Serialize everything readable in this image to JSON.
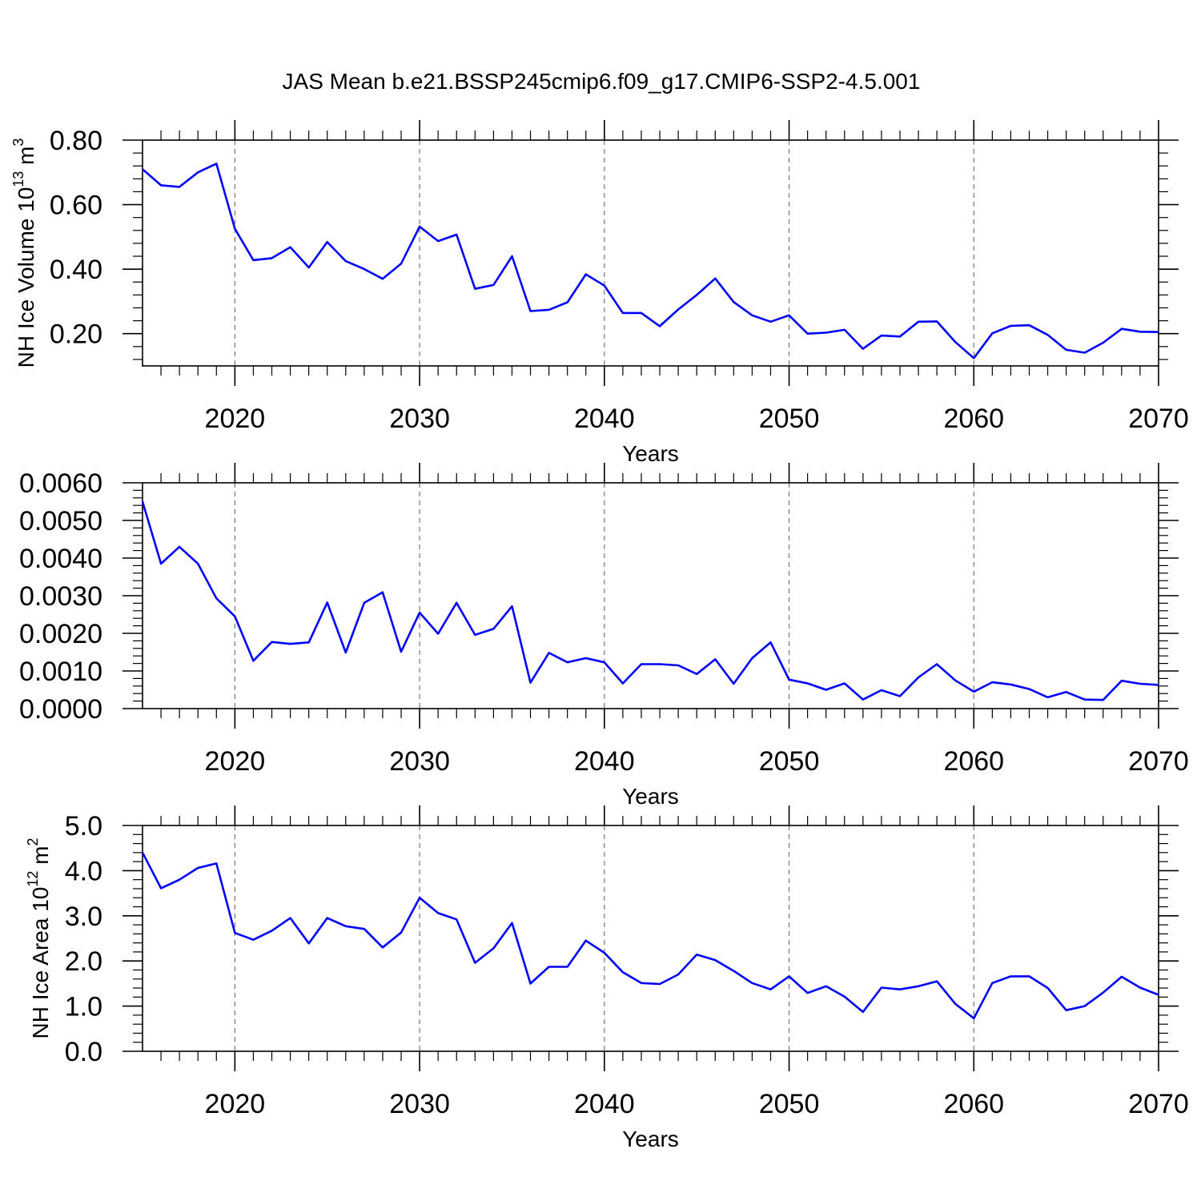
{
  "title": "JAS Mean b.e21.BSSP245cmip6.f09_g17.CMIP6-SSP2-4.5.001",
  "chart_data": [
    {
      "type": "line",
      "title": "JAS Mean b.e21.BSSP245cmip6.f09_g17.CMIP6-SSP2-4.5.001",
      "xlabel": "Years",
      "ylabel": {
        "base": "NH Ice Volume 10",
        "sup": "13",
        "unit": " m",
        "unit_sup": "3"
      },
      "xlim": [
        2015,
        2070
      ],
      "ylim": [
        0.1,
        0.8
      ],
      "xticks": [
        2020,
        2030,
        2040,
        2050,
        2060,
        2070
      ],
      "xtick_labels": [
        "2020",
        "2030",
        "2040",
        "2050",
        "2060",
        "2070"
      ],
      "yticks": [
        0.2,
        0.4,
        0.6,
        0.8
      ],
      "ytick_labels": [
        "0.20",
        "0.40",
        "0.60",
        "0.80"
      ],
      "grid": "dashed vertical at major x ticks",
      "color": "#0000ff",
      "x": [
        2015,
        2016,
        2017,
        2018,
        2019,
        2020,
        2021,
        2022,
        2023,
        2024,
        2025,
        2026,
        2027,
        2028,
        2029,
        2030,
        2031,
        2032,
        2033,
        2034,
        2035,
        2036,
        2037,
        2038,
        2039,
        2040,
        2041,
        2042,
        2043,
        2044,
        2045,
        2046,
        2047,
        2048,
        2049,
        2050,
        2051,
        2052,
        2053,
        2054,
        2055,
        2056,
        2057,
        2058,
        2059,
        2060,
        2061,
        2062,
        2063,
        2064,
        2065,
        2066,
        2067,
        2068,
        2069,
        2070
      ],
      "values": [
        0.71,
        0.66,
        0.655,
        0.7,
        0.727,
        0.525,
        0.428,
        0.434,
        0.468,
        0.405,
        0.484,
        0.425,
        0.4,
        0.37,
        0.417,
        0.532,
        0.487,
        0.507,
        0.339,
        0.351,
        0.44,
        0.27,
        0.274,
        0.297,
        0.384,
        0.349,
        0.264,
        0.264,
        0.223,
        0.275,
        0.32,
        0.371,
        0.298,
        0.257,
        0.237,
        0.257,
        0.2,
        0.203,
        0.212,
        0.153,
        0.194,
        0.191,
        0.237,
        0.238,
        0.174,
        0.124,
        0.201,
        0.224,
        0.226,
        0.196,
        0.15,
        0.141,
        0.172,
        0.215,
        0.206,
        0.205
      ]
    },
    {
      "type": "line",
      "xlabel": "Years",
      "ylabel": {
        "base": "",
        "sup": "",
        "unit": "",
        "unit_sup": ""
      },
      "xlim": [
        2015,
        2070
      ],
      "ylim": [
        0,
        0.006
      ],
      "xticks": [
        2020,
        2030,
        2040,
        2050,
        2060,
        2070
      ],
      "xtick_labels": [
        "2020",
        "2030",
        "2040",
        "2050",
        "2060",
        "2070"
      ],
      "yticks": [
        0,
        0.001,
        0.002,
        0.003,
        0.004,
        0.005,
        0.006
      ],
      "ytick_labels": [
        "0.0000",
        "0.0010",
        "0.0020",
        "0.0030",
        "0.0040",
        "0.0050",
        "0.0060"
      ],
      "grid": "dashed vertical at major x ticks",
      "color": "#0000ff",
      "x": [
        2015,
        2016,
        2017,
        2018,
        2019,
        2020,
        2021,
        2022,
        2023,
        2024,
        2025,
        2026,
        2027,
        2028,
        2029,
        2030,
        2031,
        2032,
        2033,
        2034,
        2035,
        2036,
        2037,
        2038,
        2039,
        2040,
        2041,
        2042,
        2043,
        2044,
        2045,
        2046,
        2047,
        2048,
        2049,
        2050,
        2051,
        2052,
        2053,
        2054,
        2055,
        2056,
        2057,
        2058,
        2059,
        2060,
        2061,
        2062,
        2063,
        2064,
        2065,
        2066,
        2067,
        2068,
        2069,
        2070
      ],
      "values": [
        0.0055,
        0.00385,
        0.0043,
        0.00385,
        0.00293,
        0.00245,
        0.00127,
        0.00177,
        0.00172,
        0.00176,
        0.00282,
        0.00149,
        0.00281,
        0.00309,
        0.00151,
        0.00255,
        0.00199,
        0.00281,
        0.00196,
        0.00212,
        0.00272,
        0.00069,
        0.00148,
        0.00123,
        0.00134,
        0.00123,
        0.00067,
        0.00118,
        0.00118,
        0.00115,
        0.00092,
        0.00131,
        0.00066,
        0.00134,
        0.00176,
        0.00077,
        0.00067,
        0.0005,
        0.00067,
        0.00024,
        0.00049,
        0.00033,
        0.00083,
        0.00118,
        0.00075,
        0.00045,
        0.0007,
        0.00064,
        0.00052,
        0.0003,
        0.00044,
        0.00024,
        0.00023,
        0.00074,
        0.00066,
        0.00063
      ]
    },
    {
      "type": "line",
      "xlabel": "Years",
      "ylabel": {
        "base": "NH Ice Area 10",
        "sup": "12",
        "unit": " m",
        "unit_sup": "2"
      },
      "xlim": [
        2015,
        2070
      ],
      "ylim": [
        0,
        5
      ],
      "xticks": [
        2020,
        2030,
        2040,
        2050,
        2060,
        2070
      ],
      "xtick_labels": [
        "2020",
        "2030",
        "2040",
        "2050",
        "2060",
        "2070"
      ],
      "yticks": [
        0,
        1,
        2,
        3,
        4,
        5
      ],
      "ytick_labels": [
        "0.0",
        "1.0",
        "2.0",
        "3.0",
        "4.0",
        "5.0"
      ],
      "grid": "dashed vertical at major x ticks",
      "color": "#0000ff",
      "x": [
        2015,
        2016,
        2017,
        2018,
        2019,
        2020,
        2021,
        2022,
        2023,
        2024,
        2025,
        2026,
        2027,
        2028,
        2029,
        2030,
        2031,
        2032,
        2033,
        2034,
        2035,
        2036,
        2037,
        2038,
        2039,
        2040,
        2041,
        2042,
        2043,
        2044,
        2045,
        2046,
        2047,
        2048,
        2049,
        2050,
        2051,
        2052,
        2053,
        2054,
        2055,
        2056,
        2057,
        2058,
        2059,
        2060,
        2061,
        2062,
        2063,
        2064,
        2065,
        2066,
        2067,
        2068,
        2069,
        2070
      ],
      "values": [
        4.4,
        3.61,
        3.8,
        4.06,
        4.16,
        2.62,
        2.47,
        2.67,
        2.95,
        2.39,
        2.95,
        2.77,
        2.71,
        2.3,
        2.63,
        3.4,
        3.06,
        2.92,
        1.96,
        2.28,
        2.84,
        1.5,
        1.87,
        1.87,
        2.45,
        2.18,
        1.75,
        1.51,
        1.49,
        1.7,
        2.14,
        2.02,
        1.78,
        1.51,
        1.37,
        1.66,
        1.29,
        1.44,
        1.21,
        0.87,
        1.41,
        1.37,
        1.44,
        1.55,
        1.05,
        0.73,
        1.51,
        1.66,
        1.66,
        1.4,
        0.91,
        1.0,
        1.3,
        1.65,
        1.41,
        1.25
      ]
    }
  ]
}
